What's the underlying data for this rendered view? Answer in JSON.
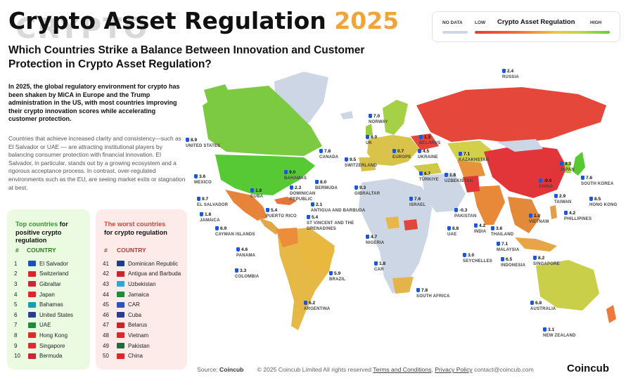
{
  "header": {
    "ghost_word": "CRYPTO",
    "title": "Crypto Asset Regulation",
    "year": "2025",
    "subtitle": "Which Countries Strike a Balance Between Innovation and Customer Protection in Crypto Asset Regulation?",
    "intro_bold": "In 2025, the global regulatory environment for crypto has been shaken by MiCA in Europe and the Trump administration in the US, with most countries improving their crypto innovation scores while accelerating customer protection.",
    "intro_body": "Countries that achieve increased clarity and consistency—such as El Salvador or UAE — are attracting institutional players by balancing consumer protection with financial innovation. El Salvador, in particular, stands out by a growing ecosystem and a rigorous acceptance process. In contrast, over-regulated environments such as the EU, are seeing market exits or stagnation at best."
  },
  "legend": {
    "no_data": "NO DATA",
    "low": "LOW",
    "title": "Crypto Asset Regulation",
    "high": "HIGH",
    "colors": {
      "no_data": "#ccd6e4",
      "low": "#e43d30",
      "high": "#5fcf3c"
    }
  },
  "top_panel": {
    "heading_highlight": "Top countries",
    "heading_rest_1": " for",
    "heading_rest_2": "positive crypto",
    "heading_rest_3": "regulation",
    "col_rank": "#",
    "col_country": "COUNTRY",
    "rows": [
      {
        "rank": "1",
        "name": "El Salvador",
        "flag": "#1d4fb8"
      },
      {
        "rank": "2",
        "name": "Switzerland",
        "flag": "#d8262c"
      },
      {
        "rank": "3",
        "name": "Gibraltar",
        "flag": "#c8283a"
      },
      {
        "rank": "4",
        "name": "Japan",
        "flag": "#e0262c"
      },
      {
        "rank": "5",
        "name": "Bahamas",
        "flag": "#1d9bb0"
      },
      {
        "rank": "6",
        "name": "United States",
        "flag": "#2a3f8a"
      },
      {
        "rank": "7",
        "name": "UAE",
        "flag": "#1f8a3c"
      },
      {
        "rank": "8",
        "name": "Hong Kong",
        "flag": "#de2a2a"
      },
      {
        "rank": "9",
        "name": "Singapore",
        "flag": "#e02a36"
      },
      {
        "rank": "10",
        "name": "Bermuda",
        "flag": "#c62834"
      }
    ]
  },
  "worst_panel": {
    "heading_highlight": "The worst countries",
    "heading_rest": "for crypto regulation",
    "col_rank": "#",
    "col_country": "COUNTRY",
    "rows": [
      {
        "rank": "41",
        "name": "Dominican Republic",
        "flag": "#1b3f8f"
      },
      {
        "rank": "42",
        "name": "Antigua and Barbuda",
        "flag": "#c8262c"
      },
      {
        "rank": "43",
        "name": "Uzbekistan",
        "flag": "#2fa5d8"
      },
      {
        "rank": "44",
        "name": "Jamaica",
        "flag": "#1f8a3c"
      },
      {
        "rank": "45",
        "name": "CAR",
        "flag": "#2a56b8"
      },
      {
        "rank": "46",
        "name": "Cuba",
        "flag": "#2a3f8a"
      },
      {
        "rank": "47",
        "name": "Belarus",
        "flag": "#c8262c"
      },
      {
        "rank": "48",
        "name": "Vietnam",
        "flag": "#e0262c"
      },
      {
        "rank": "49",
        "name": "Pakistan",
        "flag": "#1f6b3c"
      },
      {
        "rank": "50",
        "name": "China",
        "flag": "#e0262c"
      }
    ]
  },
  "map_markers": [
    {
      "score": "2.4",
      "country": "RUSSIA"
    },
    {
      "score": "7.0",
      "country": "NORWAY"
    },
    {
      "score": "8.0",
      "country": "UK"
    },
    {
      "score": "1.3",
      "country": "BELARUS"
    },
    {
      "score": "0.7",
      "country": "EUROPE"
    },
    {
      "score": "4.5",
      "country": "UKRAINE"
    },
    {
      "score": "7.1",
      "country": "KAZAKHSTAN"
    },
    {
      "score": "9.5",
      "country": "SWITZERLAND"
    },
    {
      "score": "6.7",
      "country": "TÜRKIYE"
    },
    {
      "score": "1.8",
      "country": "UZBEKISTAN"
    },
    {
      "score": "9.3",
      "country": "GIBRALTAR"
    },
    {
      "score": "9.3",
      "country": "JAPAN"
    },
    {
      "score": "-0.6",
      "country": "CHINA"
    },
    {
      "score": "7.6",
      "country": "SOUTH KOREA"
    },
    {
      "score": "2.9",
      "country": "TAIWAN"
    },
    {
      "score": "8.5",
      "country": "HONG KONG"
    },
    {
      "score": "7.6",
      "country": "ISRAEL"
    },
    {
      "score": "-0.3",
      "country": "PAKISTAN"
    },
    {
      "score": "1.0",
      "country": "VIETNAM"
    },
    {
      "score": "4.2",
      "country": "PHILLIPINES"
    },
    {
      "score": "8.8",
      "country": "UAE"
    },
    {
      "score": "4.2",
      "country": "INDIA"
    },
    {
      "score": "3.6",
      "country": "THAILAND"
    },
    {
      "score": "7.1",
      "country": "MALAYSIA"
    },
    {
      "score": "3.0",
      "country": "SEYCHELLES"
    },
    {
      "score": "6.5",
      "country": "INDONESIA"
    },
    {
      "score": "8.2",
      "country": "SINGAPORE"
    },
    {
      "score": "4.7",
      "country": "NIGERIA"
    },
    {
      "score": "1.8",
      "country": "CAR"
    },
    {
      "score": "7.8",
      "country": "SOUTH AFRICA"
    },
    {
      "score": "6.8",
      "country": "AUSTRALIA"
    },
    {
      "score": "3.1",
      "country": "NEW ZEALAND"
    },
    {
      "score": "8.9",
      "country": "UNITED STATES"
    },
    {
      "score": "7.8",
      "country": "CANADA"
    },
    {
      "score": "3.6",
      "country": "MEXICO"
    },
    {
      "score": "9.0",
      "country": "BAHAMAS"
    },
    {
      "score": "1.8",
      "country": "CUBA"
    },
    {
      "score": "2.3",
      "country": "DOMINICAN REPUBLIC"
    },
    {
      "score": "8.0",
      "country": "BERMUDA"
    },
    {
      "score": "9.7",
      "country": "EL SALVADOR"
    },
    {
      "score": "2.1",
      "country": "ANTIGUA AND BARBUDA"
    },
    {
      "score": "1.8",
      "country": "JAMAICA"
    },
    {
      "score": "5.4",
      "country": "PUERTO RICO"
    },
    {
      "score": "5.4",
      "country": "ST VINCENT AND THE GRENADINES"
    },
    {
      "score": "6.9",
      "country": "CAYMAN ISLANDS"
    },
    {
      "score": "4.6",
      "country": "PANAMA"
    },
    {
      "score": "3.3",
      "country": "COLOMBIA"
    },
    {
      "score": "5.9",
      "country": "BRAZIL"
    },
    {
      "score": "6.2",
      "country": "ARGENTINA"
    }
  ],
  "footer": {
    "source_label": "Source:",
    "source": "Coincub",
    "copyright": "© 2025 Coincub Limited  All rights reserved",
    "terms": "Terms and Conditions",
    "privacy": "Privacy Policy",
    "contact": "contact@coincub.com",
    "brand": "Coincub"
  }
}
